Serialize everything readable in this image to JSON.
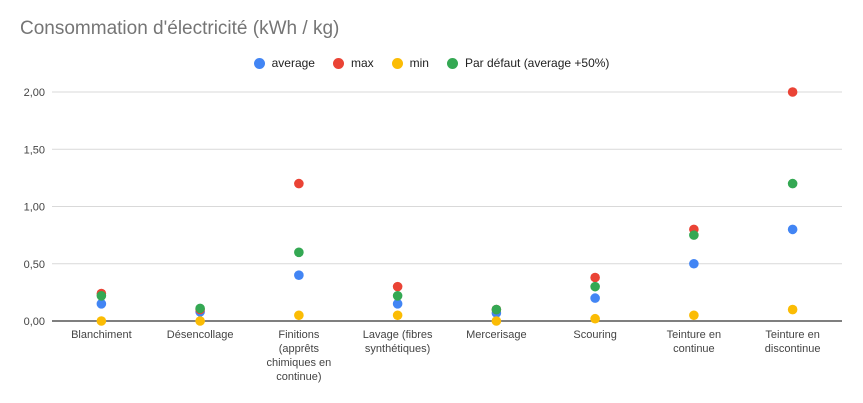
{
  "chart_data": {
    "type": "scatter",
    "title": "Consommation d'électricité (kWh / kg)",
    "xlabel": "",
    "ylabel": "",
    "categories": [
      [
        "Blanchiment"
      ],
      [
        "Désencollage"
      ],
      [
        "Finitions",
        "(apprêts",
        "chimiques en",
        "continue)"
      ],
      [
        "Lavage (fibres",
        "synthétiques)"
      ],
      [
        "Mercerisage"
      ],
      [
        "Scouring"
      ],
      [
        "Teinture en",
        "continue"
      ],
      [
        "Teinture en",
        "discontinue"
      ]
    ],
    "ylim": [
      0,
      2
    ],
    "yticks": [
      "0,00",
      "0,50",
      "1,00",
      "1,50",
      "2,00"
    ],
    "legend_position": "top",
    "grid": true,
    "series": [
      {
        "name": "average",
        "color": "#4285F4",
        "values": [
          0.15,
          0.08,
          0.4,
          0.15,
          0.07,
          0.2,
          0.5,
          0.8
        ]
      },
      {
        "name": "max",
        "color": "#EA4335",
        "values": [
          0.24,
          0.1,
          1.2,
          0.3,
          0.1,
          0.38,
          0.8,
          2.0
        ]
      },
      {
        "name": "min",
        "color": "#FBBC04",
        "values": [
          0.0,
          0.0,
          0.05,
          0.05,
          0.0,
          0.02,
          0.05,
          0.1
        ]
      },
      {
        "name": "Par défaut (average +50%)",
        "color": "#34A853",
        "values": [
          0.22,
          0.11,
          0.6,
          0.22,
          0.1,
          0.3,
          0.75,
          1.2
        ]
      }
    ]
  }
}
